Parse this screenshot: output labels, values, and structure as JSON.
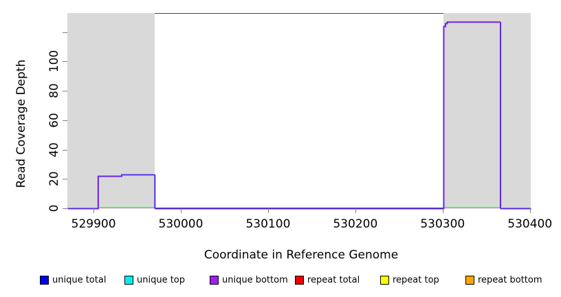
{
  "chart_data": {
    "type": "line",
    "title": "",
    "xlabel": "Coordinate in Reference Genome",
    "ylabel": "Read Coverage Depth",
    "xlim": [
      529870,
      530401
    ],
    "ylim": [
      0,
      133
    ],
    "grid": false,
    "x_ticks": [
      {
        "value": 529900,
        "label": "529900"
      },
      {
        "value": 530000,
        "label": "530000"
      },
      {
        "value": 530100,
        "label": "530100"
      },
      {
        "value": 530200,
        "label": "530200"
      },
      {
        "value": 530300,
        "label": "530300"
      },
      {
        "value": 530400,
        "label": "530400"
      }
    ],
    "y_ticks": [
      {
        "value": 0,
        "label": "0"
      },
      {
        "value": 20,
        "label": "20"
      },
      {
        "value": 40,
        "label": "40"
      },
      {
        "value": 60,
        "label": "60"
      },
      {
        "value": 80,
        "label": "80"
      },
      {
        "value": 100,
        "label": "100"
      },
      {
        "value": 120,
        "label": ""
      }
    ],
    "repeat_regions": [
      {
        "start": 529870,
        "end": 529970
      },
      {
        "start": 530301,
        "end": 530401
      }
    ],
    "coverage_markers": [
      {
        "start": 529905,
        "end": 529970
      },
      {
        "start": 530301,
        "end": 530366
      }
    ],
    "series": [
      {
        "name": "unique total",
        "color": "#2222EE",
        "offset": 0,
        "steps": [
          [
            529870,
            0
          ],
          [
            529905,
            22
          ],
          [
            529932,
            23
          ],
          [
            529970,
            0
          ],
          [
            530301,
            124
          ],
          [
            530303,
            126
          ],
          [
            530305,
            127
          ],
          [
            530366,
            0
          ],
          [
            530401,
            0
          ]
        ]
      },
      {
        "name": "unique bottom",
        "color": "#8A2BE2",
        "offset": 0.9,
        "steps": [
          [
            529870,
            0
          ],
          [
            529905,
            22
          ],
          [
            529932,
            23
          ],
          [
            529970,
            0
          ],
          [
            530301,
            124
          ],
          [
            530303,
            126
          ],
          [
            530305,
            127
          ],
          [
            530366,
            0
          ],
          [
            530401,
            0
          ]
        ]
      }
    ],
    "colors": {
      "region_fill": "#D9D9D9",
      "marker_green": "#90EE90",
      "frame": "#454545",
      "tick": "#808080"
    }
  },
  "legend": {
    "items": [
      {
        "label": "unique total",
        "color": "#0000EE"
      },
      {
        "label": "unique top",
        "color": "#00EEEE"
      },
      {
        "label": "unique bottom",
        "color": "#A020F0"
      },
      {
        "label": "repeat total",
        "color": "#EE0000"
      },
      {
        "label": "repeat top",
        "color": "#FFFF00"
      },
      {
        "label": "repeat bottom",
        "color": "#FFA500"
      }
    ]
  }
}
